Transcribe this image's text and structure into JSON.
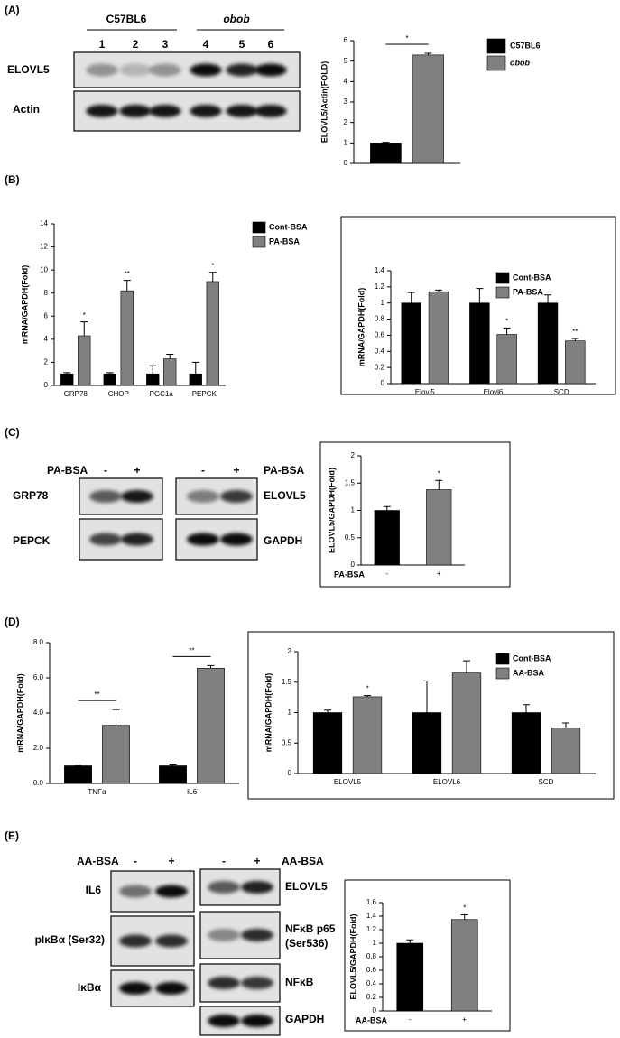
{
  "panel_labels": [
    "(A)",
    "(B)",
    "(C)",
    "(D)",
    "(E)"
  ],
  "blot_a": {
    "groups": [
      "C57BL6",
      "obob"
    ],
    "lanes": [
      "1",
      "2",
      "3",
      "4",
      "5",
      "6"
    ],
    "rows": [
      "ELOVL5",
      "Actin"
    ]
  },
  "blot_c": {
    "treatment": "PA-BSA",
    "lanes": [
      "-",
      "+"
    ],
    "left_rows": [
      "GRP78",
      "PEPCK"
    ],
    "right_rows": [
      "ELOVL5",
      "GAPDH"
    ]
  },
  "blot_e": {
    "treatment": "AA-BSA",
    "lanes": [
      "-",
      "+"
    ],
    "left_rows": [
      "IL6",
      "pIκBα (Ser32)",
      "IκBα"
    ],
    "right_rows": [
      "ELOVL5",
      [
        "NFκB p65",
        "(Ser536)"
      ],
      "NFκB",
      "GAPDH"
    ]
  },
  "chart_data": [
    {
      "type": "bar",
      "ylabel": "ELOVL5/Actin(FOLD)",
      "categories": [
        null
      ],
      "legend": "right",
      "brackets": true,
      "series": [
        {
          "name": "C57BL6",
          "color": "#000000",
          "values": [
            1.0
          ],
          "errors": [
            0.03
          ]
        },
        {
          "name": "obob",
          "color": "#808080",
          "values": [
            5.3
          ],
          "errors": [
            0.08
          ],
          "significance": [
            "*"
          ]
        }
      ],
      "ylim": [
        0,
        6
      ],
      "yticks": [
        0,
        1,
        2,
        3,
        4,
        5,
        6
      ]
    },
    {
      "type": "bar",
      "ylabel": "mRNA/GAPDH(Fold)",
      "categories": [
        "GRP78",
        "CHOP",
        "PGC1a",
        "PEPCK"
      ],
      "legend": "right",
      "series": [
        {
          "name": "Cont-BSA",
          "color": "#000000",
          "values": [
            1,
            1,
            1,
            1
          ],
          "errors": [
            0.1,
            0.1,
            0.7,
            1.0
          ]
        },
        {
          "name": "PA-BSA",
          "color": "#808080",
          "values": [
            4.3,
            8.2,
            2.3,
            9.0
          ],
          "errors": [
            1.2,
            0.9,
            0.4,
            0.8
          ],
          "significance": [
            "*",
            "**",
            null,
            "*"
          ]
        }
      ],
      "ylim": [
        0,
        14
      ],
      "yticks": [
        0,
        2,
        4,
        6,
        8,
        10,
        12,
        14
      ]
    },
    {
      "type": "bar",
      "ylabel": "mRNA/GAPDH(Fold)",
      "categories": [
        "Elovl5",
        "Elovl6",
        "SCD"
      ],
      "legend": "upper right",
      "series": [
        {
          "name": "Cont-BSA",
          "color": "#000000",
          "values": [
            1,
            1,
            1
          ],
          "errors": [
            0.13,
            0.18,
            0.1
          ]
        },
        {
          "name": "PA-BSA",
          "color": "#808080",
          "values": [
            1.14,
            0.61,
            0.53
          ],
          "errors": [
            0.02,
            0.08,
            0.03
          ],
          "significance": [
            null,
            "*",
            "**"
          ]
        }
      ],
      "ylim": [
        0,
        1.4
      ],
      "yticks": [
        0,
        0.2,
        0.4,
        0.6,
        0.8,
        1,
        1.2,
        1.4
      ]
    },
    {
      "type": "bar",
      "ylabel": "ELOVL5/GAPDH(Fold)",
      "xlabel": "PA-BSA",
      "categories": [
        "-",
        "+"
      ],
      "colors": [
        "#000000",
        "#808080"
      ],
      "series": [
        {
          "values": [
            1.0,
            1.38
          ],
          "errors": [
            0.07,
            0.17
          ],
          "significance": [
            null,
            "*"
          ]
        }
      ],
      "ylim": [
        0,
        2
      ],
      "yticks": [
        0,
        0.5,
        1,
        1.5,
        2
      ]
    },
    {
      "type": "bar",
      "ylabel": "mRNA/GAPDH(Fold)",
      "categories": [
        "TNFα",
        "IL6"
      ],
      "brackets": true,
      "series": [
        {
          "color": "#000000",
          "values": [
            1,
            1
          ],
          "errors": [
            0.03,
            0.1
          ]
        },
        {
          "color": "#808080",
          "values": [
            3.3,
            6.55
          ],
          "errors": [
            0.9,
            0.15
          ],
          "significance": [
            "**",
            "**"
          ]
        }
      ],
      "ylim": [
        0,
        8
      ],
      "yticks": [
        {
          "value": 0,
          "label": "0.0"
        },
        {
          "value": 2,
          "label": "2.0"
        },
        {
          "value": 4,
          "label": "4.0"
        },
        {
          "value": 6,
          "label": "6.0"
        },
        {
          "value": 8,
          "label": "8.0"
        }
      ]
    },
    {
      "type": "bar",
      "ylabel": "mRNA/GAPDH(Fold)",
      "categories": [
        "ELOVL5",
        "ELOVL6",
        "SCD"
      ],
      "legend": "upper right",
      "series": [
        {
          "name": "Cont-BSA",
          "color": "#000000",
          "values": [
            1,
            1,
            1
          ],
          "errors": [
            0.04,
            0.52,
            0.13
          ]
        },
        {
          "name": "AA-BSA",
          "color": "#808080",
          "values": [
            1.26,
            1.65,
            0.75
          ],
          "errors": [
            0.02,
            0.2,
            0.08
          ],
          "significance": [
            "*",
            null,
            null
          ]
        }
      ],
      "ylim": [
        0,
        2
      ],
      "yticks": [
        0,
        0.5,
        1,
        1.5,
        2
      ]
    },
    {
      "type": "bar",
      "ylabel": "ELOVL5/GAPDH(Fold)",
      "xlabel": "AA-BSA",
      "categories": [
        "-",
        "+"
      ],
      "colors": [
        "#000000",
        "#808080"
      ],
      "series": [
        {
          "values": [
            1.0,
            1.35
          ],
          "errors": [
            0.05,
            0.07
          ],
          "significance": [
            null,
            "*"
          ]
        }
      ],
      "ylim": [
        0,
        1.6
      ],
      "yticks": [
        0,
        0.2,
        0.4,
        0.6,
        0.8,
        1,
        1.2,
        1.4,
        1.6
      ]
    }
  ]
}
